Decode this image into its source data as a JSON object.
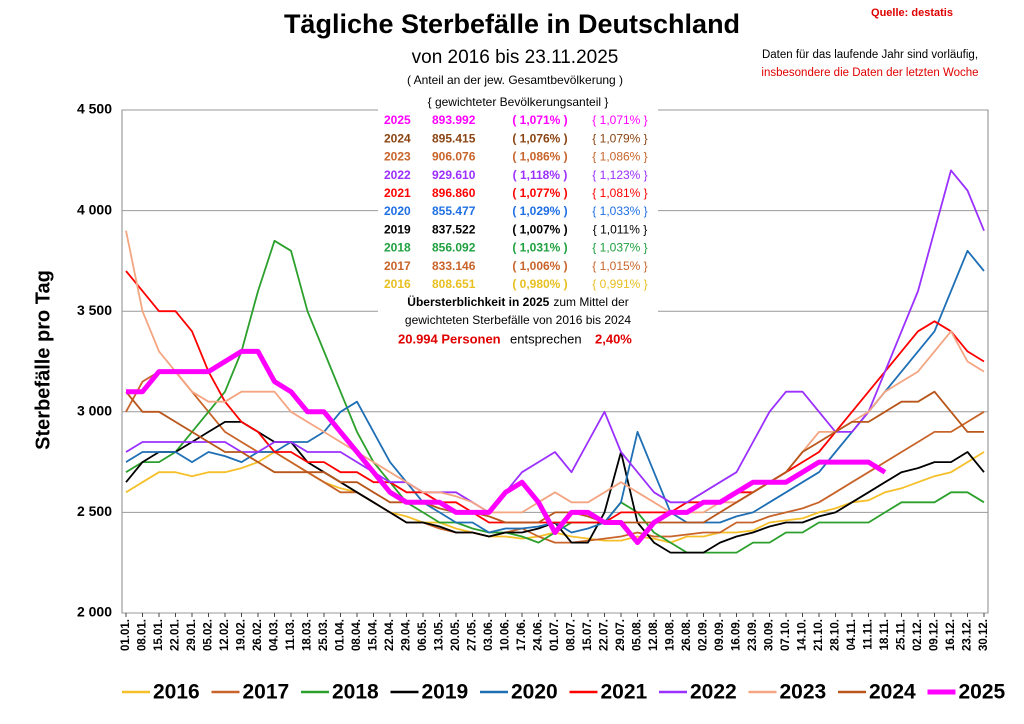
{
  "chart_data": {
    "type": "line",
    "title": "Tägliche Sterbefälle in Deutschland",
    "subtitle": "von 2016 bis 23.11.2025",
    "note": "( Anteil an der jew. Gesamtbevölkerung )",
    "source": "Quelle: destatis",
    "disclaimer": [
      "Daten für das laufende Jahr sind vorläufig,",
      "insbesondere die Daten der letzten Woche"
    ],
    "y_label": "Sterbefälle pro Tag",
    "ylim": [
      2000,
      4500
    ],
    "yticks": [
      {
        "value": 2000,
        "label": "2 000"
      },
      {
        "value": 2500,
        "label": "2 500"
      },
      {
        "value": 3000,
        "label": "3 000"
      },
      {
        "value": 3500,
        "label": "3 500"
      },
      {
        "value": 4000,
        "label": "4 000"
      },
      {
        "value": 4500,
        "label": "4 500"
      }
    ],
    "grid": true,
    "legend": "bottom",
    "categories": [
      "01.01.",
      "08.01.",
      "15.01.",
      "22.01.",
      "29.01.",
      "05.02.",
      "12.02.",
      "19.02.",
      "26.02.",
      "04.03.",
      "11.03.",
      "18.03.",
      "25.03.",
      "01.04.",
      "08.04.",
      "15.04.",
      "22.04.",
      "29.04.",
      "06.05.",
      "13.05.",
      "20.05.",
      "27.05.",
      "03.06.",
      "10.06.",
      "17.06.",
      "24.06.",
      "01.07.",
      "08.07.",
      "15.07.",
      "22.07.",
      "29.07.",
      "05.08.",
      "12.08.",
      "19.08.",
      "26.08.",
      "02.09.",
      "09.09.",
      "16.09.",
      "23.09.",
      "30.09.",
      "07.10.",
      "14.10.",
      "21.10.",
      "28.10.",
      "04.11.",
      "11.11.",
      "18.11.",
      "25.11.",
      "02.12.",
      "09.12.",
      "16.12.",
      "23.12.",
      "30.12."
    ],
    "series": [
      {
        "name": "2016",
        "color": "#f5c02a",
        "values": [
          2600,
          2650,
          2700,
          2700,
          2680,
          2700,
          2700,
          2720,
          2750,
          2800,
          2750,
          2700,
          2650,
          2620,
          2600,
          2550,
          2500,
          2480,
          2450,
          2450,
          2420,
          2400,
          2380,
          2380,
          2370,
          2380,
          2400,
          2380,
          2370,
          2360,
          2360,
          2380,
          2370,
          2350,
          2380,
          2380,
          2400,
          2400,
          2410,
          2450,
          2460,
          2470,
          2500,
          2520,
          2550,
          2560,
          2600,
          2620,
          2650,
          2680,
          2700,
          2750,
          2800
        ]
      },
      {
        "name": "2017",
        "color": "#c8642a",
        "values": [
          3000,
          3150,
          3200,
          3200,
          3100,
          3000,
          2900,
          2850,
          2800,
          2800,
          2750,
          2700,
          2650,
          2600,
          2600,
          2550,
          2500,
          2450,
          2450,
          2420,
          2400,
          2400,
          2380,
          2400,
          2420,
          2380,
          2350,
          2350,
          2360,
          2370,
          2380,
          2400,
          2380,
          2380,
          2390,
          2400,
          2400,
          2450,
          2450,
          2480,
          2500,
          2520,
          2550,
          2600,
          2650,
          2700,
          2750,
          2800,
          2850,
          2900,
          2900,
          2950,
          3000
        ]
      },
      {
        "name": "2018",
        "color": "#2ca02c",
        "values": [
          2700,
          2750,
          2750,
          2800,
          2900,
          3000,
          3100,
          3300,
          3600,
          3850,
          3800,
          3500,
          3300,
          3100,
          2900,
          2750,
          2650,
          2550,
          2500,
          2450,
          2450,
          2420,
          2400,
          2400,
          2380,
          2350,
          2400,
          2450,
          2450,
          2450,
          2550,
          2500,
          2400,
          2350,
          2300,
          2300,
          2300,
          2300,
          2350,
          2350,
          2400,
          2400,
          2450,
          2450,
          2450,
          2450,
          2500,
          2550,
          2550,
          2550,
          2600,
          2600,
          2550
        ]
      },
      {
        "name": "2019",
        "color": "#000000",
        "values": [
          2650,
          2750,
          2800,
          2800,
          2850,
          2900,
          2950,
          2950,
          2900,
          2850,
          2850,
          2750,
          2700,
          2650,
          2600,
          2550,
          2500,
          2450,
          2450,
          2430,
          2400,
          2400,
          2380,
          2400,
          2400,
          2420,
          2450,
          2350,
          2350,
          2500,
          2800,
          2450,
          2350,
          2300,
          2300,
          2300,
          2350,
          2380,
          2400,
          2430,
          2450,
          2450,
          2480,
          2500,
          2550,
          2600,
          2650,
          2700,
          2720,
          2750,
          2750,
          2800,
          2700
        ]
      },
      {
        "name": "2020",
        "color": "#1f6fb5",
        "values": [
          2750,
          2800,
          2800,
          2800,
          2750,
          2800,
          2780,
          2750,
          2800,
          2800,
          2850,
          2850,
          2900,
          3000,
          3050,
          2900,
          2750,
          2650,
          2550,
          2500,
          2450,
          2450,
          2400,
          2420,
          2420,
          2430,
          2450,
          2400,
          2420,
          2450,
          2550,
          2900,
          2700,
          2500,
          2450,
          2450,
          2450,
          2480,
          2500,
          2550,
          2600,
          2650,
          2700,
          2800,
          2900,
          3000,
          3100,
          3200,
          3300,
          3400,
          3600,
          3800,
          3700
        ]
      },
      {
        "name": "2021",
        "color": "#ff0000",
        "values": [
          3700,
          3600,
          3500,
          3500,
          3400,
          3200,
          3050,
          2950,
          2900,
          2800,
          2800,
          2750,
          2750,
          2700,
          2700,
          2650,
          2650,
          2600,
          2600,
          2550,
          2550,
          2500,
          2450,
          2450,
          2450,
          2450,
          2450,
          2450,
          2450,
          2450,
          2500,
          2500,
          2500,
          2500,
          2550,
          2550,
          2550,
          2600,
          2600,
          2650,
          2700,
          2750,
          2800,
          2900,
          3000,
          3100,
          3200,
          3300,
          3400,
          3450,
          3400,
          3300,
          3250
        ]
      },
      {
        "name": "2022",
        "color": "#9b30ff",
        "values": [
          2800,
          2850,
          2850,
          2850,
          2850,
          2850,
          2850,
          2800,
          2800,
          2850,
          2850,
          2800,
          2800,
          2800,
          2750,
          2700,
          2650,
          2650,
          2600,
          2600,
          2600,
          2550,
          2500,
          2600,
          2700,
          2750,
          2800,
          2700,
          2850,
          3000,
          2800,
          2700,
          2600,
          2550,
          2550,
          2600,
          2650,
          2700,
          2850,
          3000,
          3100,
          3100,
          3000,
          2900,
          2900,
          3000,
          3200,
          3400,
          3600,
          3900,
          4200,
          4100,
          3900
        ]
      },
      {
        "name": "2023",
        "color": "#f4a582",
        "values": [
          3900,
          3500,
          3300,
          3200,
          3100,
          3050,
          3050,
          3100,
          3100,
          3100,
          3000,
          2950,
          2900,
          2850,
          2800,
          2750,
          2700,
          2650,
          2600,
          2600,
          2580,
          2550,
          2500,
          2500,
          2500,
          2550,
          2600,
          2550,
          2550,
          2600,
          2650,
          2600,
          2550,
          2500,
          2500,
          2500,
          2550,
          2550,
          2600,
          2650,
          2700,
          2800,
          2900,
          2900,
          2950,
          3000,
          3100,
          3150,
          3200,
          3300,
          3400,
          3250,
          3200
        ]
      },
      {
        "name": "2024",
        "color": "#b8561b",
        "values": [
          3100,
          3000,
          3000,
          2950,
          2900,
          2850,
          2800,
          2800,
          2750,
          2700,
          2700,
          2700,
          2700,
          2650,
          2650,
          2600,
          2550,
          2550,
          2550,
          2520,
          2500,
          2500,
          2480,
          2450,
          2450,
          2450,
          2500,
          2500,
          2480,
          2450,
          2450,
          2450,
          2450,
          2450,
          2450,
          2450,
          2500,
          2550,
          2600,
          2650,
          2700,
          2800,
          2850,
          2900,
          2950,
          2950,
          3000,
          3050,
          3050,
          3100,
          3000,
          2900,
          2900
        ]
      },
      {
        "name": "2025",
        "color": "#ff00ff",
        "values": [
          3100,
          3100,
          3200,
          3200,
          3200,
          3200,
          3250,
          3300,
          3300,
          3150,
          3100,
          3000,
          3000,
          2900,
          2800,
          2700,
          2600,
          2550,
          2550,
          2550,
          2500,
          2500,
          2500,
          2600,
          2650,
          2550,
          2400,
          2500,
          2500,
          2450,
          2450,
          2350,
          2450,
          2500,
          2500,
          2550,
          2550,
          2600,
          2650,
          2650,
          2650,
          2700,
          2750,
          2750,
          2750,
          2750,
          2700,
          null,
          null,
          null,
          null,
          null,
          null
        ]
      }
    ],
    "box": {
      "header": "{ gewichteter Bevölkerungsanteil }",
      "rows": [
        {
          "year": "2025",
          "count": "893.992",
          "share": "( 1,071% )",
          "weighted": "{ 1,071% }",
          "color": "#ff00ff"
        },
        {
          "year": "2024",
          "count": "895.415",
          "share": "( 1,076% )",
          "weighted": "{ 1,079% }",
          "color": "#8b4513"
        },
        {
          "year": "2023",
          "count": "906.076",
          "share": "( 1,086% )",
          "weighted": "{ 1,086% }",
          "color": "#c8642a"
        },
        {
          "year": "2022",
          "count": "929.610",
          "share": "( 1,118% )",
          "weighted": "{ 1,123% }",
          "color": "#9b30ff"
        },
        {
          "year": "2021",
          "count": "896.860",
          "share": "( 1,077% )",
          "weighted": "{ 1,081% }",
          "color": "#ff0000"
        },
        {
          "year": "2020",
          "count": "855.477",
          "share": "( 1,029% )",
          "weighted": "{ 1,033% }",
          "color": "#1f6fe5"
        },
        {
          "year": "2019",
          "count": "837.522",
          "share": "( 1,007% )",
          "weighted": "{ 1,011% }",
          "color": "#000000"
        },
        {
          "year": "2018",
          "count": "856.092",
          "share": "( 1,031% )",
          "weighted": "{ 1,037% }",
          "color": "#20a040"
        },
        {
          "year": "2017",
          "count": "833.146",
          "share": "( 1,006% )",
          "weighted": "{ 1,015% }",
          "color": "#c8642a"
        },
        {
          "year": "2016",
          "count": "808.651",
          "share": "( 0,980% )",
          "weighted": "{ 0,991% }",
          "color": "#e8c020"
        }
      ],
      "excess_title": "Übersterblichkeit in 2025",
      "excess_text": [
        "zum Mittel der",
        "gewichteten Sterbefälle von 2016 bis 2024"
      ],
      "excess_persons": "20.994 Personen",
      "excess_mid": "entsprechen",
      "excess_pct": "2,40%"
    }
  }
}
